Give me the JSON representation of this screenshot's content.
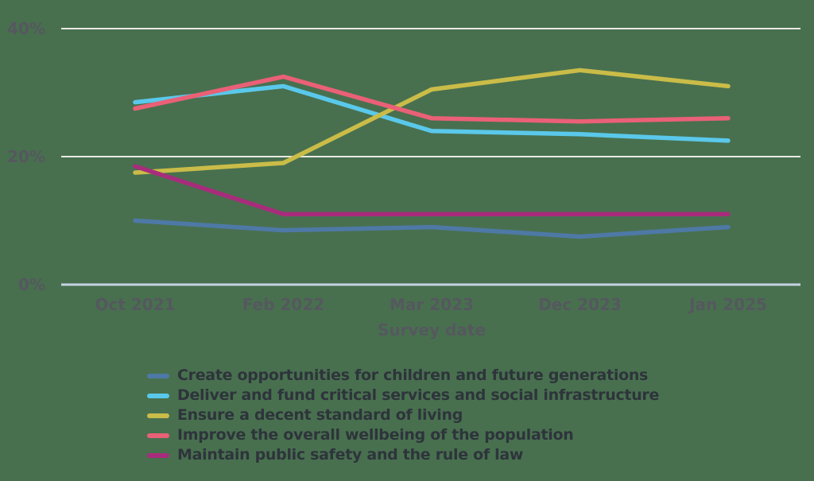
{
  "colors": {
    "background": "#48704f",
    "gridline": "#e9e8e2",
    "baseline_axis": "#c6d2e3",
    "tick_label": "#55585e",
    "axis_title": "#55585e",
    "legend_text": "#2e343b"
  },
  "chart_data": {
    "type": "line",
    "title": "",
    "xlabel": "Survey date",
    "ylabel": "",
    "y_unit": "%",
    "ylim": [
      0,
      40
    ],
    "yticks": [
      0,
      20,
      40
    ],
    "grid": true,
    "legend_position": "bottom-left",
    "categories": [
      "Oct 2021",
      "Feb 2022",
      "Mar 2023",
      "Dec 2023",
      "Jan 2025"
    ],
    "series": [
      {
        "name": "Create opportunities for children and future generations",
        "color": "#4e79a6",
        "values": [
          10,
          8.5,
          9,
          7.5,
          9
        ]
      },
      {
        "name": "Deliver and fund critical services and social infrastructure",
        "color": "#5ac8ea",
        "values": [
          28.5,
          31,
          24,
          23.5,
          22.5
        ]
      },
      {
        "name": "Ensure a decent standard of living",
        "color": "#cabc48",
        "values": [
          17.5,
          19,
          30.5,
          33.5,
          31
        ]
      },
      {
        "name": "Improve the overall wellbeing of the population",
        "color": "#ea6076",
        "values": [
          27.5,
          32.5,
          26,
          25.5,
          26
        ]
      },
      {
        "name": "Maintain public safety and the rule of law",
        "color": "#a82c7c",
        "values": [
          18.5,
          11,
          11,
          11,
          11
        ]
      }
    ]
  }
}
